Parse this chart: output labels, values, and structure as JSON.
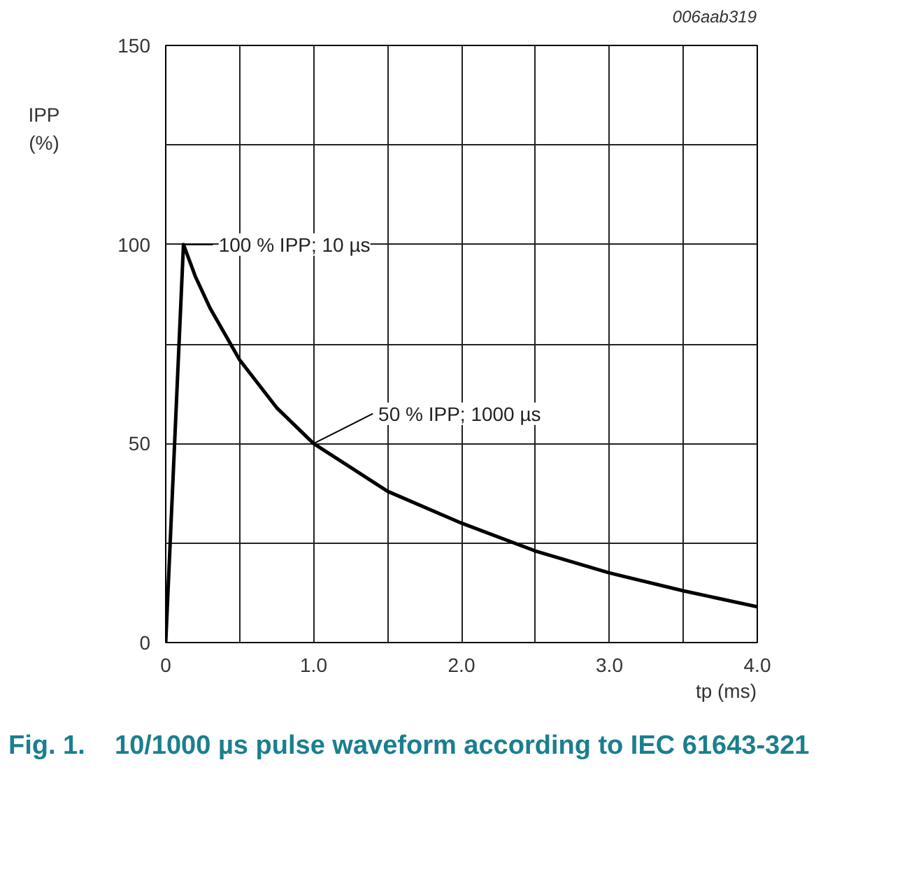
{
  "chart_data": {
    "type": "line",
    "title": "Fig. 1.    10/1000 µs pulse waveform according to IEC 61643-321",
    "xlabel": "tp (ms)",
    "ylabel": "IPP (%)",
    "x": [
      0,
      0.12,
      0.2,
      0.3,
      0.5,
      0.75,
      1.0,
      1.5,
      2.0,
      2.5,
      3.0,
      3.5,
      4.0
    ],
    "series": [
      {
        "color": "#000000",
        "values": [
          0,
          100,
          92,
          84,
          71,
          59,
          50,
          38,
          30,
          23,
          17.5,
          13,
          9
        ]
      }
    ],
    "xlim": [
      0,
      4.0
    ],
    "ylim": [
      0,
      150
    ],
    "xticks": [
      0,
      {
        "value": 0.5,
        "label": null
      },
      {
        "value": 1.0,
        "label": "1.0"
      },
      {
        "value": 1.5,
        "label": null
      },
      {
        "value": 2.0,
        "label": "2.0"
      },
      {
        "value": 2.5,
        "label": null
      },
      {
        "value": 3.0,
        "label": "3.0"
      },
      {
        "value": 3.5,
        "label": null
      },
      {
        "value": 4.0,
        "label": "4.0"
      }
    ],
    "yticks": [
      0,
      {
        "value": 25,
        "label": null
      },
      50,
      {
        "value": 75,
        "label": null
      },
      100,
      {
        "value": 125,
        "label": null
      },
      150
    ],
    "grid": true,
    "line_style": "solid",
    "annotations": [
      {
        "text": "100 % IPP; 10 µs",
        "x": 0.12,
        "y": 100
      },
      {
        "text": "50 % IPP; 1000 µs",
        "x": 1.0,
        "y": 50
      },
      "006aab319"
    ]
  }
}
